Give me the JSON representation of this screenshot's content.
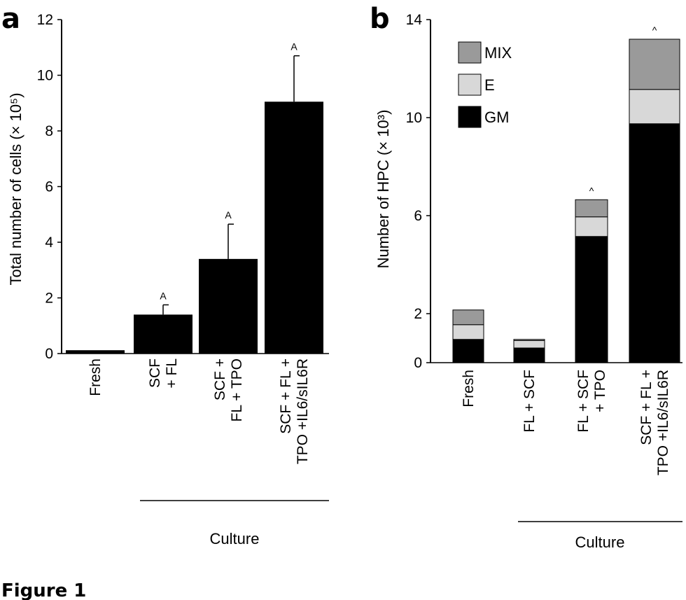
{
  "figure_caption": "Figure 1",
  "chart_data": [
    {
      "panel": "a",
      "type": "bar",
      "title": "",
      "ylabel": "Total number of cells (× 10⁵)",
      "ylim": [
        0,
        12
      ],
      "yticks": [
        0,
        2,
        4,
        6,
        8,
        10,
        12
      ],
      "categories": [
        "Fresh",
        "SCF\n+ FL",
        "SCF +\nFL + TPO",
        "SCF + FL +\nTPO +IL6/sIL6R"
      ],
      "values": [
        0.12,
        1.4,
        3.4,
        9.05
      ],
      "errors": [
        0,
        0.35,
        1.25,
        1.65
      ],
      "annotations": [
        "",
        "A",
        "A",
        "A"
      ],
      "group_label": "Culture",
      "grid": false
    },
    {
      "panel": "b",
      "type": "bar",
      "stacked": true,
      "title": "",
      "ylabel": "Number of HPC (× 10³)",
      "ylim": [
        0,
        14
      ],
      "yticks": [
        0,
        2,
        6,
        10,
        14
      ],
      "categories": [
        "Fresh",
        "FL + SCF",
        "FL + SCF\n+ TPO",
        "SCF + FL +\nTPO +IL6/sIL6R"
      ],
      "series": [
        {
          "name": "GM",
          "color": "#000000",
          "values": [
            0.95,
            0.6,
            5.15,
            9.75
          ]
        },
        {
          "name": "E",
          "color": "#d8d8d8",
          "values": [
            0.6,
            0.3,
            0.8,
            1.4
          ]
        },
        {
          "name": "MIX",
          "color": "#9a9a9a",
          "values": [
            0.6,
            0.05,
            0.7,
            2.05
          ]
        }
      ],
      "annotations": [
        "",
        "",
        "^",
        "^"
      ],
      "legend_position": "top-left",
      "legend_order": [
        "MIX",
        "E",
        "GM"
      ],
      "group_label": "Culture",
      "grid": false
    }
  ]
}
